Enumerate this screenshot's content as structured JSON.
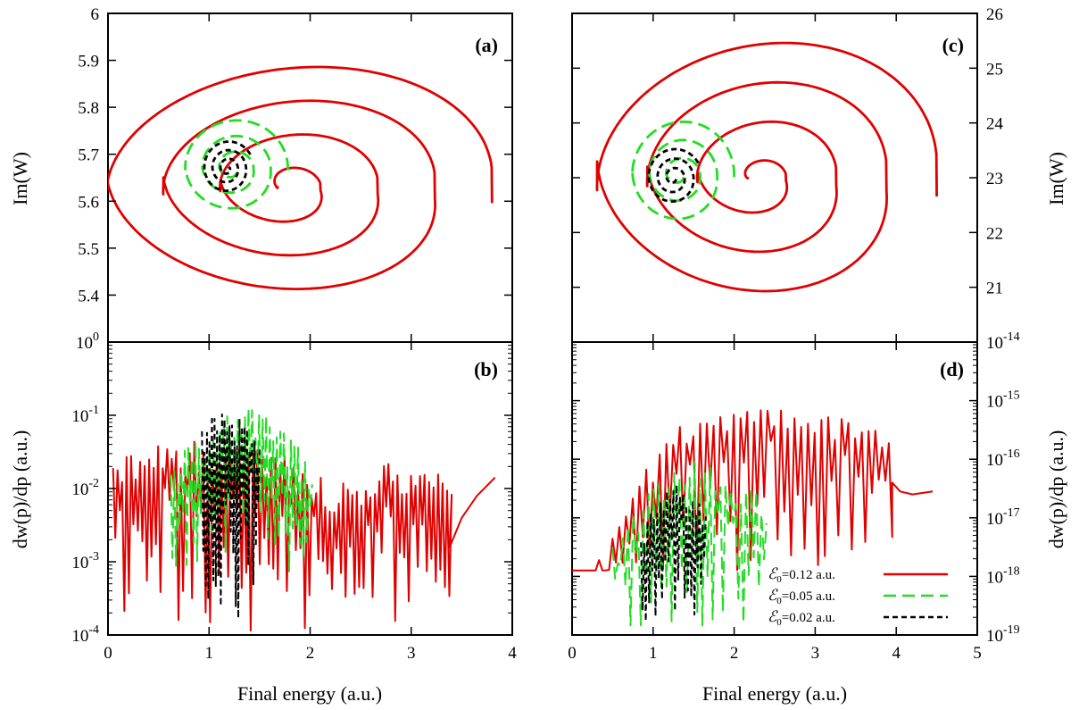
{
  "colors": {
    "red": "#e00000",
    "green": "#22dd22",
    "black": "#000000"
  },
  "chart_data": [
    {
      "id": "a",
      "type": "line",
      "panel_label": "(a)",
      "ylabel": "Im(W)",
      "xlim": [
        0,
        4
      ],
      "ylim": [
        5.3,
        6.0
      ],
      "yticks": [
        "6",
        "5.9",
        "5.8",
        "5.7",
        "5.6",
        "5.5",
        "5.4"
      ],
      "ytick_values": [
        6.0,
        5.9,
        5.8,
        5.7,
        5.6,
        5.5,
        5.4
      ],
      "series": [
        {
          "style": "red",
          "spiral": {
            "cx": 1.75,
            "cy": 5.63,
            "rx_out": 2.05,
            "ry_out": 0.27,
            "rx_in": 0.07,
            "ry_in": 0.02,
            "turns": 3.5,
            "phase0": 0.0,
            "skew": 1.05
          }
        },
        {
          "style": "green",
          "spiral": {
            "cx": 1.23,
            "cy": 5.67,
            "rx_out": 0.55,
            "ry_out": 0.11,
            "rx_in": 0.04,
            "ry_in": 0.01,
            "turns": 3.0,
            "phase0": 0.0,
            "skew": 0.3
          }
        },
        {
          "style": "black",
          "spiral": {
            "cx": 1.18,
            "cy": 5.67,
            "rx_out": 0.26,
            "ry_out": 0.06,
            "rx_in": 0.02,
            "ry_in": 0.005,
            "turns": 3.0,
            "phase0": 0.5,
            "skew": 0.1
          }
        }
      ]
    },
    {
      "id": "b",
      "type": "line",
      "panel_label": "(b)",
      "ylabel": "dw(p)/dp (a.u.)",
      "yscale": "log",
      "xlim": [
        0,
        4
      ],
      "ylim_exp": [
        -4,
        0
      ],
      "xticks": [
        "0",
        "1",
        "2",
        "3",
        "4"
      ],
      "xtick_values": [
        0,
        1,
        2,
        3,
        4
      ],
      "yticks": [
        {
          "base": "10",
          "exp": "0"
        },
        {
          "base": "10",
          "exp": "-1"
        },
        {
          "base": "10",
          "exp": "-2"
        },
        {
          "base": "10",
          "exp": "-3"
        },
        {
          "base": "10",
          "exp": "-4"
        }
      ],
      "ytick_exps": [
        0,
        -1,
        -2,
        -3,
        -4
      ],
      "xlabel": "Final energy (a.u.)",
      "series": [
        {
          "style": "red",
          "band": {
            "x0": 0.05,
            "x1": 3.4,
            "n": 150,
            "top_logs": [
              -1.6,
              -1.3,
              -1.4,
              -1.5,
              -1.9,
              -1.6,
              -1.7
            ],
            "min_log": -3.95,
            "seed": 11
          },
          "tail": [
            [
              3.38,
              -2.8
            ],
            [
              3.5,
              -2.4
            ],
            [
              3.65,
              -2.1
            ],
            [
              3.83,
              -1.85
            ]
          ]
        },
        {
          "style": "green",
          "band": {
            "x0": 0.62,
            "x1": 2.02,
            "n": 80,
            "top_logs": [
              -1.7,
              -1.1,
              -0.8,
              -1.1,
              -1.6
            ],
            "min_log": -3.2,
            "seed": 5
          }
        },
        {
          "style": "black",
          "band": {
            "x0": 0.93,
            "x1": 1.5,
            "n": 46,
            "top_logs": [
              -1.1,
              -0.9,
              -1.0,
              -1.3
            ],
            "min_log": -3.8,
            "seed": 3
          }
        }
      ]
    },
    {
      "id": "c",
      "type": "line",
      "panel_label": "(c)",
      "ylabel": "Im(W)",
      "ylabel_side": "right",
      "xlim": [
        0,
        5
      ],
      "ylim": [
        20,
        26
      ],
      "yticks": [
        "26",
        "25",
        "24",
        "23",
        "22",
        "21"
      ],
      "ytick_values": [
        26,
        25,
        24,
        23,
        22,
        21
      ],
      "series": [
        {
          "style": "red",
          "spiral": {
            "cx": 2.25,
            "cy": 23.0,
            "rx_out": 2.25,
            "ry_out": 2.6,
            "rx_in": 0.08,
            "ry_in": 0.1,
            "turns": 3.5,
            "phase0": 0.0,
            "skew": 1.1
          }
        },
        {
          "style": "green",
          "spiral": {
            "cx": 1.32,
            "cy": 23.05,
            "rx_out": 0.68,
            "ry_out": 1.05,
            "rx_in": 0.05,
            "ry_in": 0.05,
            "turns": 3.0,
            "phase0": 0.0,
            "skew": 0.3
          }
        },
        {
          "style": "black",
          "spiral": {
            "cx": 1.25,
            "cy": 23.0,
            "rx_out": 0.35,
            "ry_out": 0.55,
            "rx_in": 0.02,
            "ry_in": 0.03,
            "turns": 3.0,
            "phase0": 0.5,
            "skew": 0.1
          }
        }
      ]
    },
    {
      "id": "d",
      "type": "line",
      "panel_label": "(d)",
      "ylabel": "dw(p)/dp (a.u.)",
      "ylabel_side": "right",
      "yscale": "log",
      "xlim": [
        0,
        5
      ],
      "ylim_exp": [
        -19,
        -14
      ],
      "xticks": [
        "0",
        "1",
        "2",
        "3",
        "4",
        "5"
      ],
      "xtick_values": [
        0,
        1,
        2,
        3,
        4,
        5
      ],
      "yticks": [
        {
          "base": "10",
          "exp": "-14"
        },
        {
          "base": "10",
          "exp": "-15"
        },
        {
          "base": "10",
          "exp": "-16"
        },
        {
          "base": "10",
          "exp": "-17"
        },
        {
          "base": "10",
          "exp": "-18"
        },
        {
          "base": "10",
          "exp": "-19"
        }
      ],
      "ytick_exps": [
        -14,
        -15,
        -16,
        -17,
        -18,
        -19
      ],
      "xlabel": "Final energy (a.u.)",
      "series": [
        {
          "style": "red",
          "band": {
            "x0": 0.0,
            "x1": 3.95,
            "n": 95,
            "top_logs": [
              -18.8,
              -16.6,
              -15.4,
              -15.05,
              -15.1,
              -15.2,
              -15.4
            ],
            "min_log": -17.9,
            "seed": 7
          },
          "tail": [
            [
              3.95,
              -16.4
            ],
            [
              4.05,
              -16.55
            ],
            [
              4.2,
              -16.6
            ],
            [
              4.45,
              -16.55
            ]
          ]
        },
        {
          "style": "green",
          "band": {
            "x0": 0.5,
            "x1": 2.4,
            "n": 60,
            "top_logs": [
              -17.4,
              -16.5,
              -16.0,
              -16.2,
              -16.6
            ],
            "min_log": -19.0,
            "seed": 9
          }
        },
        {
          "style": "black",
          "band": {
            "x0": 0.85,
            "x1": 1.65,
            "n": 40,
            "top_logs": [
              -17.3,
              -16.4,
              -16.4,
              -16.9
            ],
            "min_log": -19.0,
            "seed": 4
          }
        }
      ],
      "legend": {
        "position": "bottom-right",
        "entries": [
          {
            "style": "red",
            "symbol": "ℰ",
            "sub": "0",
            "text": "=0.12 a.u."
          },
          {
            "style": "green",
            "symbol": "ℰ",
            "sub": "0",
            "text": "=0.05 a.u."
          },
          {
            "style": "black",
            "symbol": "ℰ",
            "sub": "0",
            "text": "=0.02 a.u."
          }
        ]
      }
    }
  ]
}
